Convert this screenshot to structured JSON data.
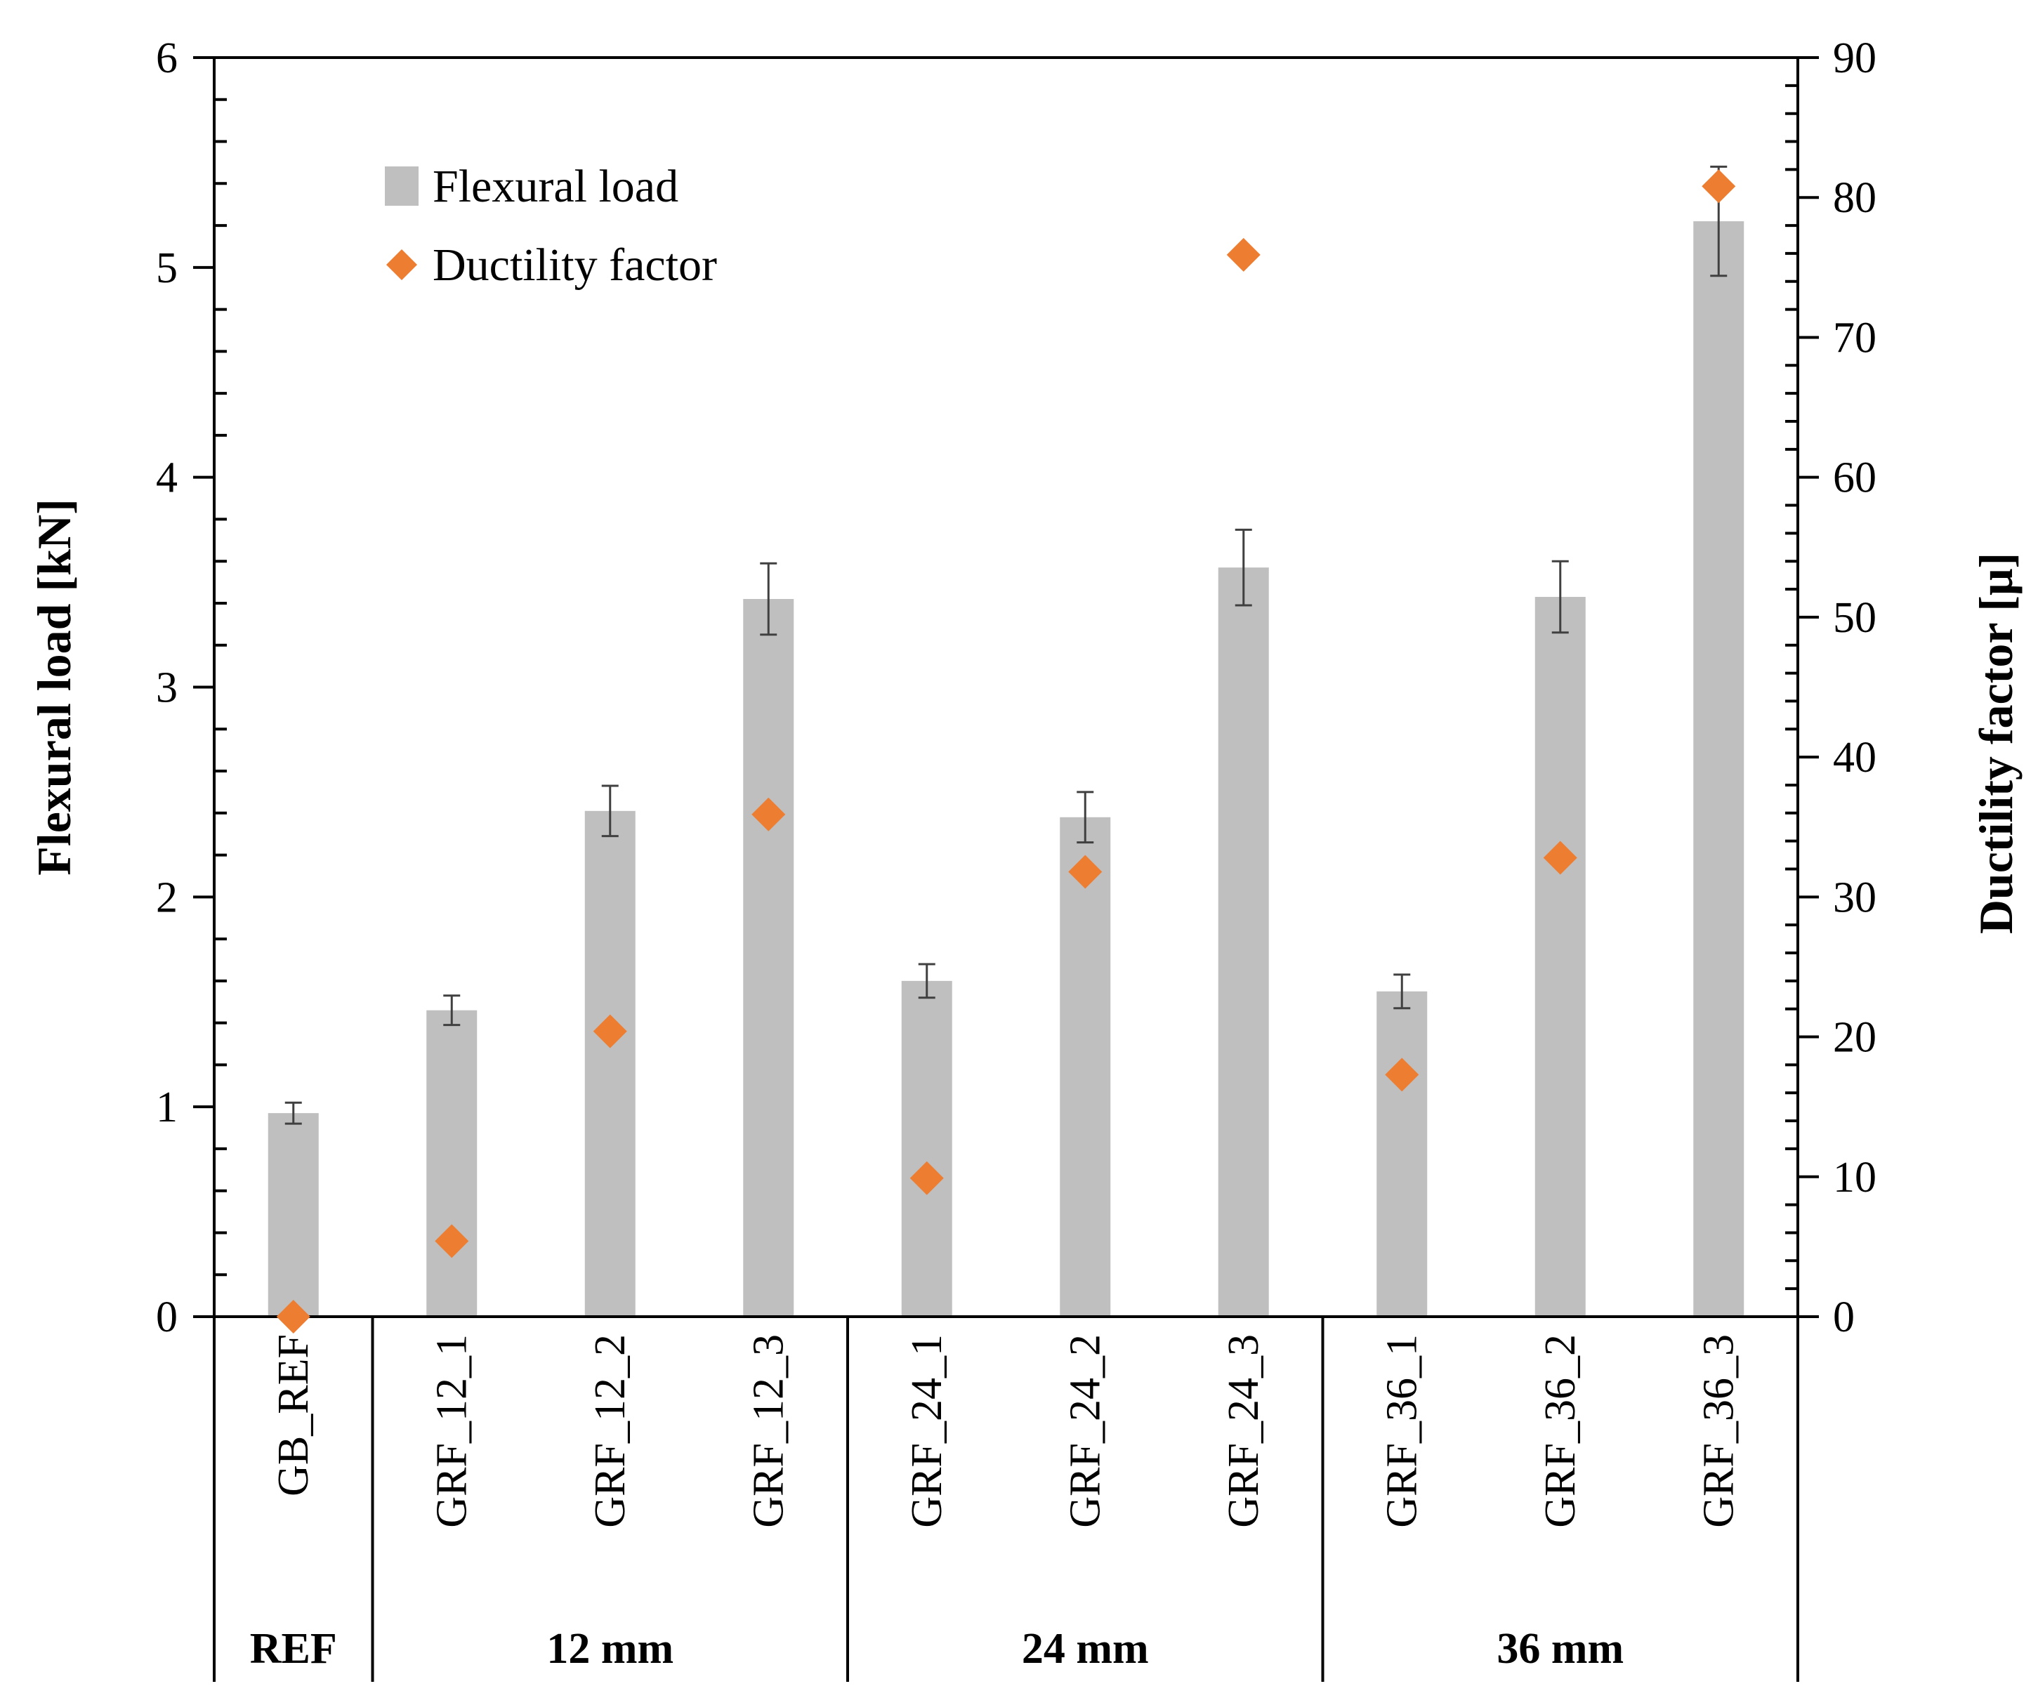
{
  "chart_data": {
    "type": "bar",
    "categories": [
      "GB_REF",
      "GRF_12_1",
      "GRF_12_2",
      "GRF_12_3",
      "GRF_24_1",
      "GRF_24_2",
      "GRF_24_3",
      "GRF_36_1",
      "GRF_36_2",
      "GRF_36_3"
    ],
    "groups": [
      {
        "label": "REF",
        "members": [
          "GB_REF"
        ]
      },
      {
        "label": "12 mm",
        "members": [
          "GRF_12_1",
          "GRF_12_2",
          "GRF_12_3"
        ]
      },
      {
        "label": "24 mm",
        "members": [
          "GRF_24_1",
          "GRF_24_2",
          "GRF_24_3"
        ]
      },
      {
        "label": "36 mm",
        "members": [
          "GRF_36_1",
          "GRF_36_2",
          "GRF_36_3"
        ]
      }
    ],
    "series": [
      {
        "name": "Flexural load",
        "kind": "bar",
        "axis": "left",
        "color": "#bfbfbf",
        "values": [
          0.97,
          1.46,
          2.41,
          3.42,
          1.6,
          2.38,
          3.57,
          1.55,
          3.43,
          5.22
        ],
        "errors": [
          0.05,
          0.07,
          0.12,
          0.17,
          0.08,
          0.12,
          0.18,
          0.08,
          0.17,
          0.26
        ]
      },
      {
        "name": "Ductility factor",
        "kind": "scatter",
        "axis": "right",
        "color": "#ed7d31",
        "values": [
          0,
          5.4,
          20.4,
          35.9,
          9.9,
          31.8,
          75.9,
          17.3,
          32.8,
          80.8
        ]
      }
    ],
    "y_left": {
      "label": "Flexural load [kN]",
      "lim": [
        0,
        6
      ],
      "ticks": [
        "0",
        "1",
        "2",
        "3",
        "4",
        "5",
        "6"
      ]
    },
    "y_right": {
      "label": "Ductility factor [μ]",
      "lim": [
        0,
        90
      ],
      "ticks": [
        "0",
        "10",
        "20",
        "30",
        "40",
        "50",
        "60",
        "70",
        "80",
        "90"
      ]
    },
    "legend": {
      "position": "top-left",
      "entries": [
        "Flexural load",
        "Ductility factor"
      ]
    },
    "grid": false
  }
}
